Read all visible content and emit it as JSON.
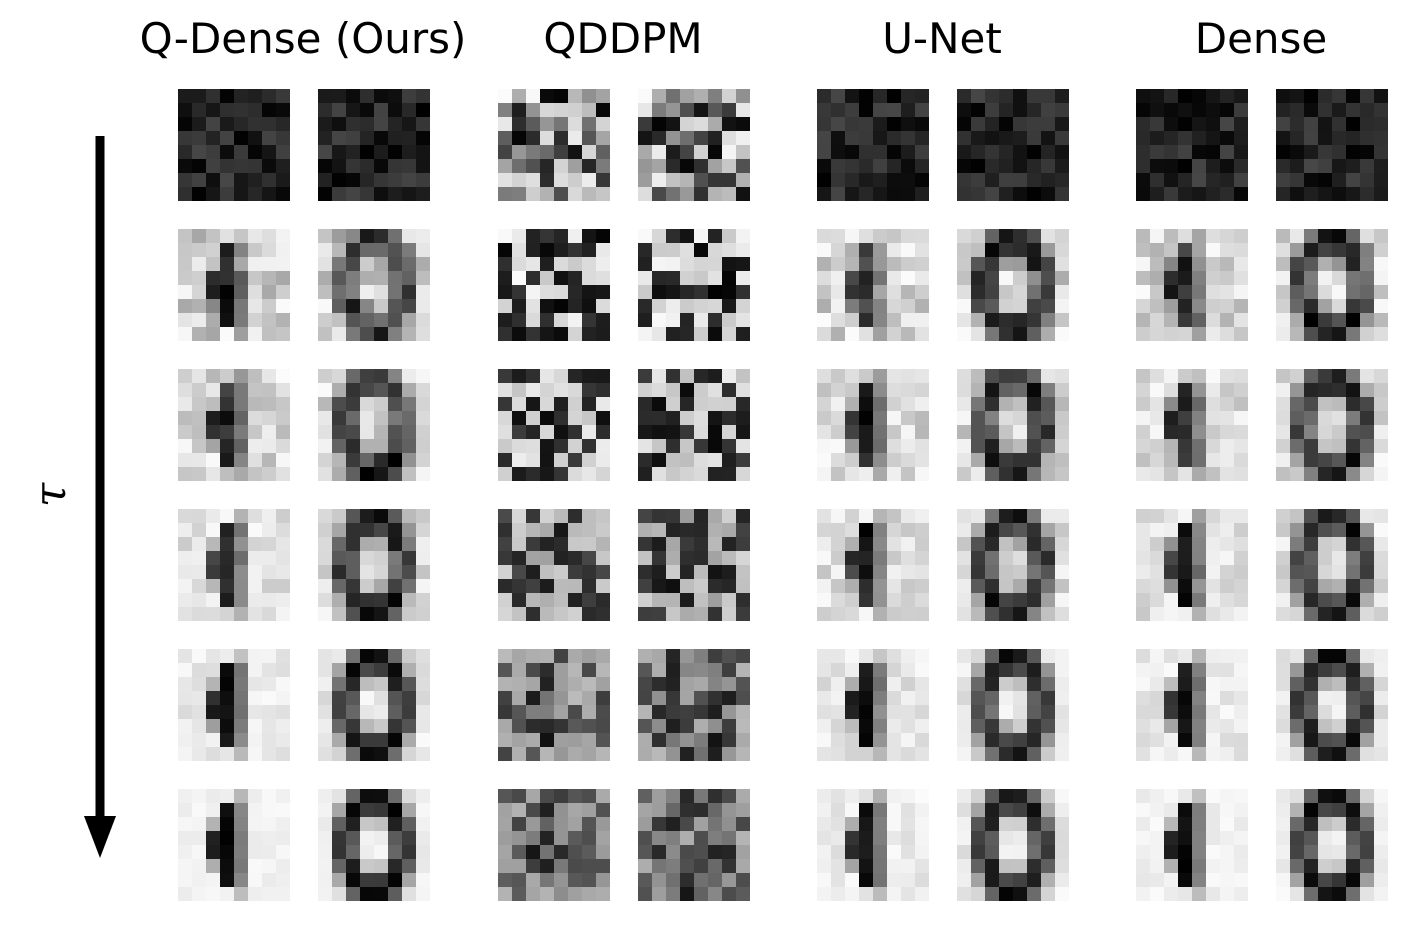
{
  "figure": {
    "columns": [
      {
        "title": "Q-Dense (Ours)",
        "key": "qdense"
      },
      {
        "title": "QDDPM",
        "key": "qddpm"
      },
      {
        "title": "U-Net",
        "key": "unet"
      },
      {
        "title": "Dense",
        "key": "dense"
      }
    ],
    "axis_label": "τ",
    "num_steps": 6,
    "samples_per_method": 2,
    "digits_shown": [
      "1",
      "0"
    ],
    "image_resolution": "8x8",
    "colormap": "gray_r"
  }
}
